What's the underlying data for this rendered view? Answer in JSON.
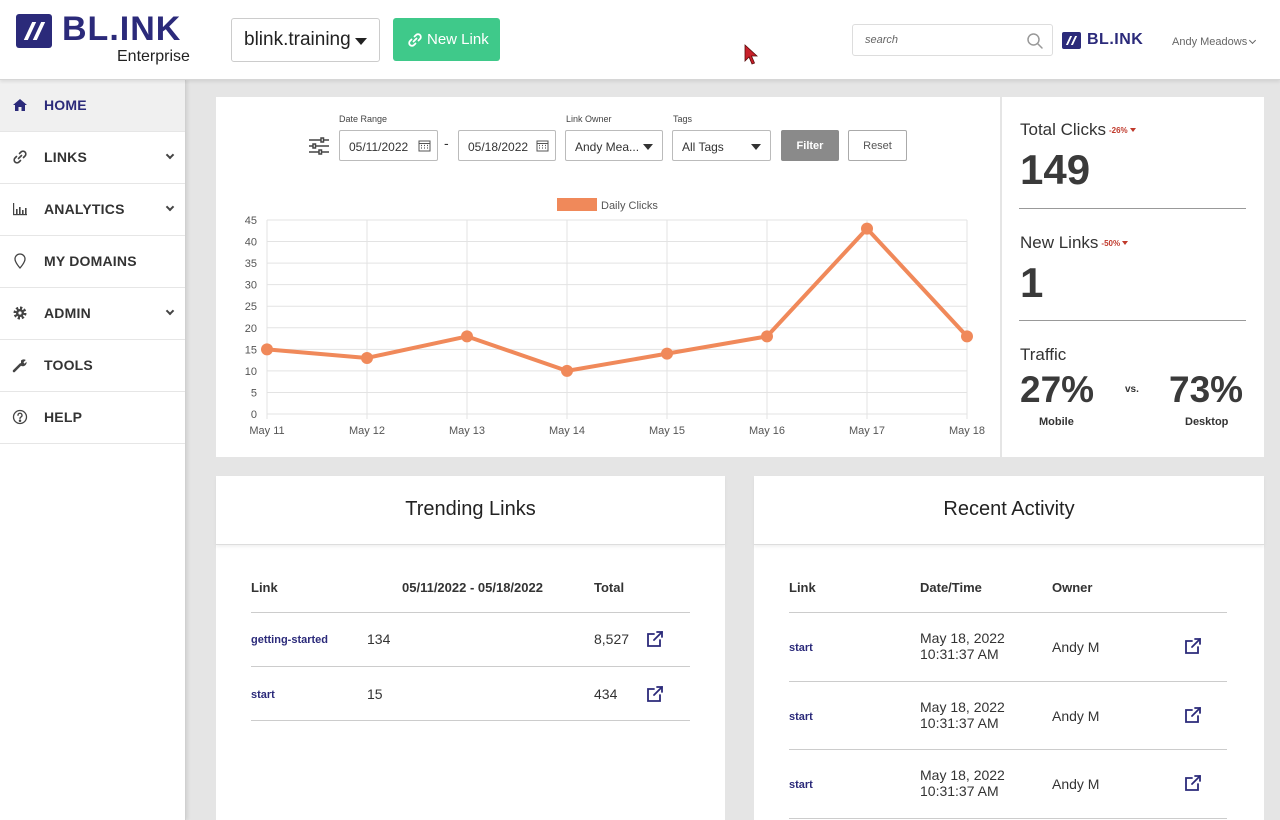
{
  "header": {
    "logo_text": "BL.INK",
    "logo_sub": "Enterprise",
    "domain": "blink.training",
    "new_link_label": "New Link",
    "search_placeholder": "search",
    "brand_small": "BL.INK",
    "user_name": "Andy Meadows"
  },
  "sidebar": {
    "items": [
      {
        "label": "HOME",
        "icon": "home-icon",
        "active": true
      },
      {
        "label": "LINKS",
        "icon": "link-icon",
        "has_chevron": true
      },
      {
        "label": "ANALYTICS",
        "icon": "bar-chart-icon",
        "has_chevron": true
      },
      {
        "label": "MY DOMAINS",
        "icon": "map-pin-icon"
      },
      {
        "label": "ADMIN",
        "icon": "gear-icon",
        "has_chevron": true
      },
      {
        "label": "TOOLS",
        "icon": "wrench-icon"
      },
      {
        "label": "HELP",
        "icon": "question-circle-icon"
      }
    ]
  },
  "filters": {
    "date_range_label": "Date Range",
    "start_date": "05/11/2022",
    "end_date": "05/18/2022",
    "separator": "-",
    "link_owner_label": "Link Owner",
    "link_owner_value": "Andy Mea...",
    "tags_label": "Tags",
    "tags_value": "All Tags",
    "filter_label": "Filter",
    "reset_label": "Reset"
  },
  "chart_data": {
    "type": "line",
    "categories": [
      "May 11",
      "May 12",
      "May 13",
      "May 14",
      "May 15",
      "May 16",
      "May 17",
      "May 18"
    ],
    "series": [
      {
        "name": "Daily Clicks",
        "values": [
          15,
          13,
          18,
          10,
          14,
          18,
          43,
          18
        ],
        "color": "#f0895a"
      }
    ],
    "yticks": [
      0,
      5,
      10,
      15,
      20,
      25,
      30,
      35,
      40,
      45
    ],
    "ylim": [
      0,
      45
    ],
    "grid": true,
    "legend": "top-center"
  },
  "stats": {
    "total_clicks_label": "Total Clicks",
    "total_clicks_delta": "-26%",
    "total_clicks_value": "149",
    "new_links_label": "New Links",
    "new_links_delta": "-50%",
    "new_links_value": "1",
    "traffic_label": "Traffic",
    "mobile_pct": "27%",
    "mobile_label": "Mobile",
    "vs": "vs.",
    "desktop_pct": "73%",
    "desktop_label": "Desktop"
  },
  "trending": {
    "title": "Trending Links",
    "columns": [
      "Link",
      "05/11/2022 - 05/18/2022",
      "Total"
    ],
    "rows": [
      {
        "link": "getting-started",
        "range": "134",
        "total": "8,527"
      },
      {
        "link": "start",
        "range": "15",
        "total": "434"
      }
    ]
  },
  "activity": {
    "title": "Recent Activity",
    "columns": [
      "Link",
      "Date/Time",
      "Owner"
    ],
    "rows": [
      {
        "link": "start",
        "date": "May 18, 2022",
        "time": "10:31:37 AM",
        "owner": "Andy M"
      },
      {
        "link": "start",
        "date": "May 18, 2022",
        "time": "10:31:37 AM",
        "owner": "Andy M"
      },
      {
        "link": "start",
        "date": "May 18, 2022",
        "time": "10:31:37 AM",
        "owner": "Andy M"
      }
    ]
  },
  "colors": {
    "brand": "#2b2a7a",
    "accent_green": "#3fc98a",
    "chart_line": "#f0895a",
    "negative": "#c0392b"
  }
}
